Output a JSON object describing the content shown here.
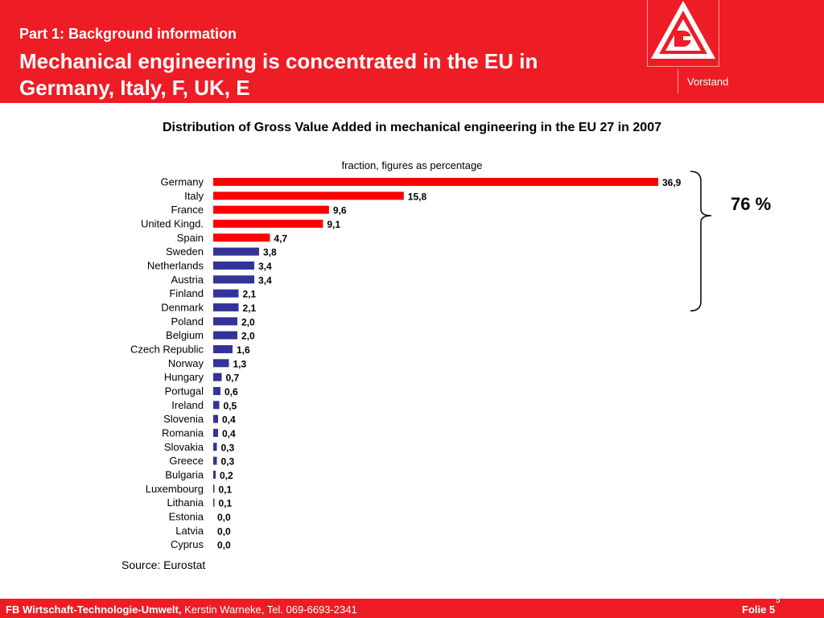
{
  "header": {
    "subtitle": "Part 1: Background information",
    "title": "Mechanical engineering is concentrated in the EU in Germany, Italy, F, UK, E",
    "org_unit": "Vorstand",
    "logo_icon": "ig-metall-logo-icon"
  },
  "chart_data": {
    "type": "bar",
    "orientation": "horizontal",
    "title": "Distribution of Gross Value Added in mechanical engineering in the EU 27 in 2007",
    "subtitle": "fraction, figures as percentage",
    "categories": [
      "Germany",
      "Italy",
      "France",
      "United Kingd.",
      "Spain",
      "Sweden",
      "Netherlands",
      "Austria",
      "Finland",
      "Denmark",
      "Poland",
      "Belgium",
      "Czech Republic",
      "Norway",
      "Hungary",
      "Portugal",
      "Ireland",
      "Slovenia",
      "Romania",
      "Slovakia",
      "Greece",
      "Bulgaria",
      "Luxembourg",
      "Lithania",
      "Estonia",
      "Latvia",
      "Cyprus"
    ],
    "values": [
      36.9,
      15.8,
      9.6,
      9.1,
      4.7,
      3.8,
      3.4,
      3.4,
      2.1,
      2.1,
      2.0,
      2.0,
      1.6,
      1.3,
      0.7,
      0.6,
      0.5,
      0.4,
      0.4,
      0.3,
      0.3,
      0.2,
      0.1,
      0.1,
      0.0,
      0.0,
      0.0
    ],
    "value_labels": [
      "36,9",
      "15,8",
      "9,6",
      "9,1",
      "4,7",
      "3,8",
      "3,4",
      "3,4",
      "2,1",
      "2,1",
      "2,0",
      "2,0",
      "1,6",
      "1,3",
      "0,7",
      "0,6",
      "0,5",
      "0,4",
      "0,4",
      "0,3",
      "0,3",
      "0,2",
      "0,1",
      "0,1",
      "0,0",
      "0,0",
      "0,0"
    ],
    "highlighted_count": 5,
    "highlight_color": "#ff0000",
    "other_color": "#333399",
    "bracket_label": "76 %",
    "xlim": [
      0,
      36.9
    ],
    "grid": false,
    "legend": "none",
    "source": "Source: Eurostat"
  },
  "footer": {
    "dept": "FB Wirtschaft-Technologie-Umwelt,",
    "contact": " Kerstin Warneke, Tel. 069-6693-2341",
    "slide_label": "Folie 5",
    "page_number": "5"
  },
  "colors": {
    "brand_red": "#ee1c25",
    "text": "#000000"
  }
}
